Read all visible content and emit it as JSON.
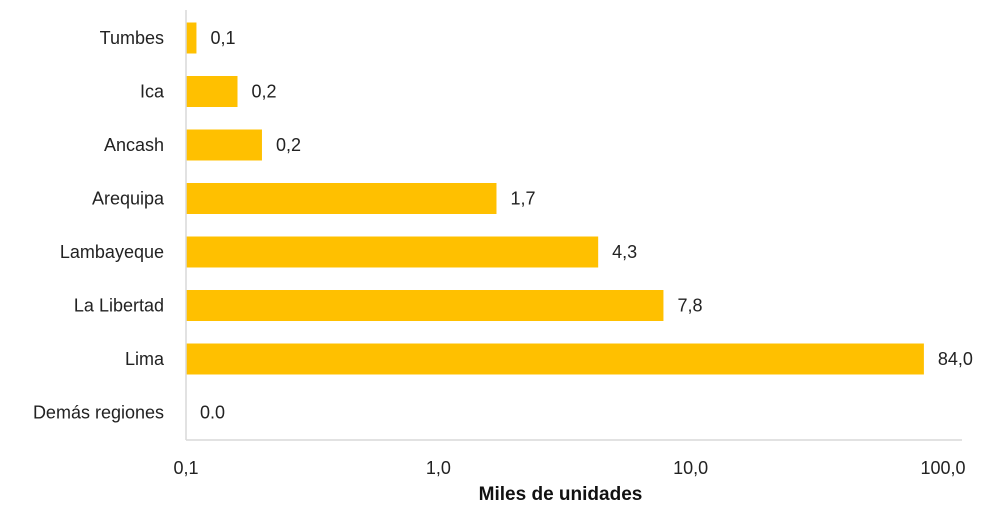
{
  "chart_data": {
    "type": "bar",
    "orientation": "horizontal",
    "categories": [
      "Tumbes",
      "Ica",
      "Ancash",
      "Arequipa",
      "Lambayeque",
      "La Libertad",
      "Lima",
      "Demás regiones"
    ],
    "values": [
      0.11,
      0.16,
      0.2,
      1.7,
      4.3,
      7.8,
      84.0,
      0.0
    ],
    "data_labels": [
      "0,1",
      "0,2",
      "0,2",
      "1,7",
      "4,3",
      "7,8",
      "84,0",
      "0.0"
    ],
    "xlabel": "Miles de unidades",
    "x_scale": "log",
    "xlim": [
      0.1,
      100
    ],
    "x_ticks": [
      0.1,
      1,
      10,
      100
    ],
    "x_tick_labels": [
      "0,1",
      "1,0",
      "10,0",
      "100,0"
    ],
    "bar_color": "#FFC000",
    "grid": false,
    "legend": "none"
  }
}
